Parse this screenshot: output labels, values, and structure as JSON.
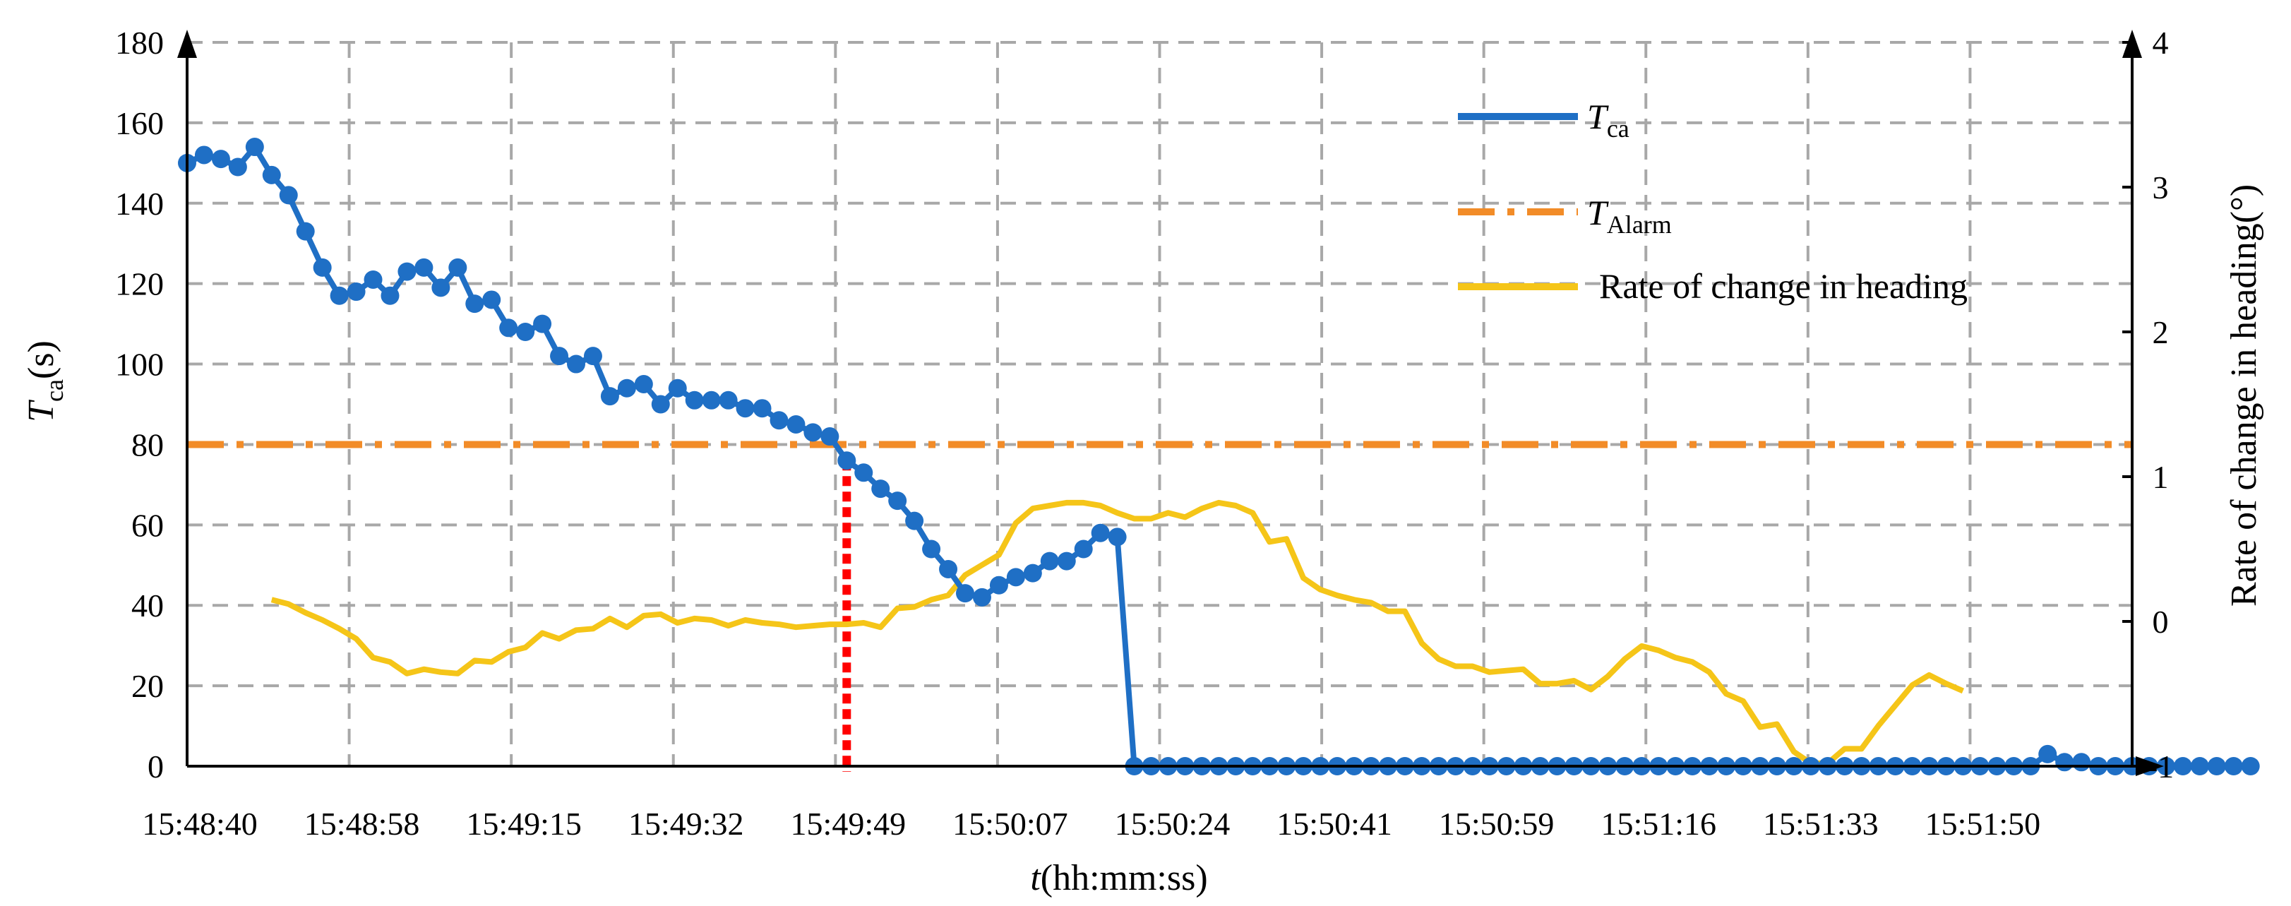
{
  "chart_data": {
    "type": "line",
    "xlabel_italic": "t",
    "xlabel_rest": "(hh:mm:ss)",
    "ylabel_left_main": "T",
    "ylabel_left_sub": "ca",
    "ylabel_left_unit": "(s)",
    "ylabel_right": "Rate of change in heading(°)",
    "x_ticks": [
      "15:48:40",
      "15:48:58",
      "15:49:15",
      "15:49:32",
      "15:49:49",
      "15:50:07",
      "15:50:24",
      "15:50:41",
      "15:50:59",
      "15:51:16",
      "15:51:33",
      "15:51:50"
    ],
    "x_range_index": [
      0,
      115
    ],
    "ylim_left": [
      0,
      180
    ],
    "y_ticks_left": [
      "0",
      "20",
      "40",
      "60",
      "80",
      "100",
      "120",
      "140",
      "160",
      "180"
    ],
    "ylim_right": [
      -1,
      4
    ],
    "y_ticks_right": [
      "-1",
      "0",
      "1",
      "2",
      "3",
      "4"
    ],
    "grid": true,
    "legend_position": "top-right",
    "legend": [
      {
        "main": "T",
        "sub": "ca",
        "color": "#1f6fc5"
      },
      {
        "main": "T",
        "sub": "Alarm",
        "color": "#f28c28"
      },
      {
        "main": "Rate of change in heading",
        "sub": "",
        "color": "#f5c518"
      }
    ],
    "alarm_value": 80,
    "tca_x_step": 1,
    "tca_values": [
      150,
      152,
      151,
      149,
      154,
      147,
      142,
      133,
      124,
      117,
      118,
      121,
      117,
      123,
      124,
      119,
      124,
      115,
      116,
      109,
      108,
      110,
      102,
      100,
      102,
      92,
      94,
      95,
      90,
      94,
      91,
      91,
      91,
      89,
      89,
      86,
      85,
      83,
      82,
      76,
      73,
      69,
      66,
      61,
      54,
      49,
      43,
      42,
      45,
      47,
      48,
      51,
      51,
      54,
      58,
      57,
      0,
      0,
      0,
      0,
      0,
      0,
      0,
      0,
      0,
      0,
      0,
      0,
      0,
      0,
      0,
      0,
      0,
      0,
      0,
      0,
      0,
      0,
      0,
      0,
      0,
      0,
      0,
      0,
      0,
      0,
      0,
      0,
      0,
      0,
      0,
      0,
      0,
      0,
      0,
      0,
      0,
      0,
      0,
      0,
      0,
      0,
      0,
      0,
      0,
      0,
      0,
      0,
      0,
      0,
      3,
      1,
      1,
      0,
      0,
      0,
      0,
      0,
      0,
      0,
      0,
      0,
      0
    ],
    "heading_x_start": 5,
    "heading_x_step": 1,
    "heading_values": [
      0.15,
      0.12,
      0.06,
      0.01,
      -0.05,
      -0.12,
      -0.25,
      -0.28,
      -0.36,
      -0.33,
      -0.35,
      -0.36,
      -0.27,
      -0.28,
      -0.21,
      -0.18,
      -0.08,
      -0.12,
      -0.06,
      -0.05,
      0.02,
      -0.04,
      0.04,
      0.05,
      -0.01,
      0.02,
      0.01,
      -0.03,
      0.01,
      -0.01,
      -0.02,
      -0.04,
      -0.03,
      -0.02,
      -0.02,
      -0.01,
      -0.04,
      0.09,
      0.1,
      0.15,
      0.18,
      0.32,
      0.39,
      0.46,
      0.68,
      0.78,
      0.8,
      0.82,
      0.82,
      0.8,
      0.75,
      0.71,
      0.71,
      0.75,
      0.72,
      0.78,
      0.82,
      0.8,
      0.75,
      0.55,
      0.57,
      0.3,
      0.22,
      0.18,
      0.15,
      0.13,
      0.07,
      0.07,
      -0.15,
      -0.26,
      -0.31,
      -0.31,
      -0.35,
      -0.34,
      -0.33,
      -0.43,
      -0.43,
      -0.41,
      -0.47,
      -0.38,
      -0.26,
      -0.17,
      -0.2,
      -0.25,
      -0.28,
      -0.35,
      -0.5,
      -0.55,
      -0.73,
      -0.71,
      -0.9,
      -0.98,
      -0.98,
      -0.88,
      -0.88,
      -0.72,
      -0.58,
      -0.44,
      -0.37,
      -0.43,
      -0.48
    ],
    "markers": [
      39,
      56
    ]
  }
}
